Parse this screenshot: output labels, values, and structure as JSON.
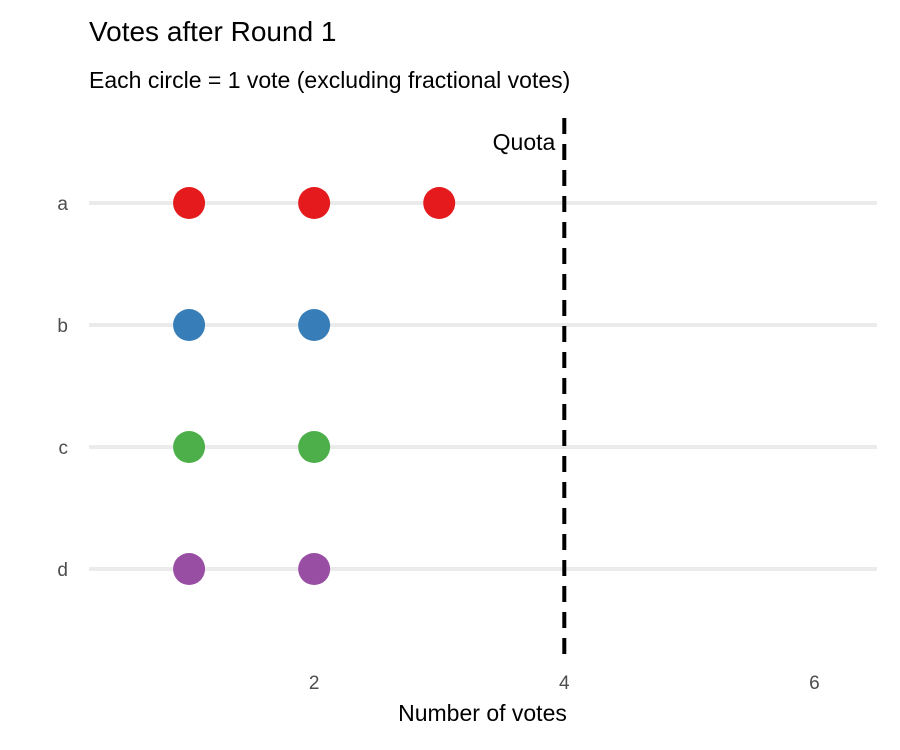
{
  "chart_data": {
    "type": "scatter",
    "title": "Votes after Round 1",
    "subtitle": "Each circle = 1 vote (excluding fractional votes)",
    "xlabel": "Number of votes",
    "ylabel": "",
    "xlim": [
      0.2,
      6.5
    ],
    "x_ticks": [
      2,
      4,
      6
    ],
    "categories": [
      "a",
      "b",
      "c",
      "d"
    ],
    "series": [
      {
        "category": "a",
        "votes": [
          1,
          2,
          3
        ],
        "color": "#E41A1C"
      },
      {
        "category": "b",
        "votes": [
          1,
          2
        ],
        "color": "#377EB8"
      },
      {
        "category": "c",
        "votes": [
          1,
          2
        ],
        "color": "#4DAF4A"
      },
      {
        "category": "d",
        "votes": [
          1,
          2
        ],
        "color": "#984EA3"
      }
    ],
    "quota": {
      "value": 4,
      "label": "Quota"
    },
    "grid": "horizontal-major",
    "legend": "none"
  }
}
